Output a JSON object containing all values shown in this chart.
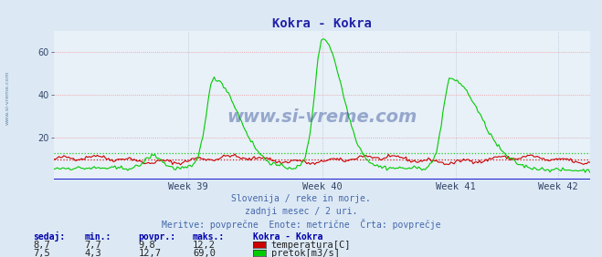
{
  "title": "Kokra - Kokra",
  "title_color": "#2222aa",
  "bg_color": "#dce9f5",
  "plot_bg_color": "#e8f0f8",
  "grid_color_h": "#ee8888",
  "grid_color_v": "#aabbcc",
  "xlim": [
    0,
    336
  ],
  "ylim": [
    0,
    70
  ],
  "yticks": [
    20,
    40,
    60
  ],
  "week_ticks": [
    {
      "x": 84,
      "label": "Week 39"
    },
    {
      "x": 168,
      "label": "Week 40"
    },
    {
      "x": 252,
      "label": "Week 41"
    },
    {
      "x": 316,
      "label": "Week 42"
    }
  ],
  "temp_avg": 9.8,
  "flow_avg": 12.7,
  "temp_color": "#cc0000",
  "flow_color": "#00cc00",
  "baseline_color": "#2222cc",
  "watermark": "www.si-vreme.com",
  "watermark_color": "#1a3a8a",
  "left_label": "www.si-vreme.com",
  "subtitle1": "Slovenija / reke in morje.",
  "subtitle2": "zadnji mesec / 2 uri.",
  "subtitle3": "Meritve: povprečne  Enote: metrične  Črta: povprečje",
  "subtitle_color": "#4466aa",
  "table_header": [
    "sedaj:",
    "min.:",
    "povpr.:",
    "maks.:",
    "Kokra - Kokra"
  ],
  "table_color": "#0000aa",
  "table_data": [
    [
      "8,7",
      "7,7",
      "9,8",
      "12,2",
      "temperatura[C]"
    ],
    [
      "7,5",
      "4,3",
      "12,7",
      "69,0",
      "pretok[m3/s]"
    ]
  ],
  "legend_colors": [
    "#cc0000",
    "#00cc00"
  ]
}
